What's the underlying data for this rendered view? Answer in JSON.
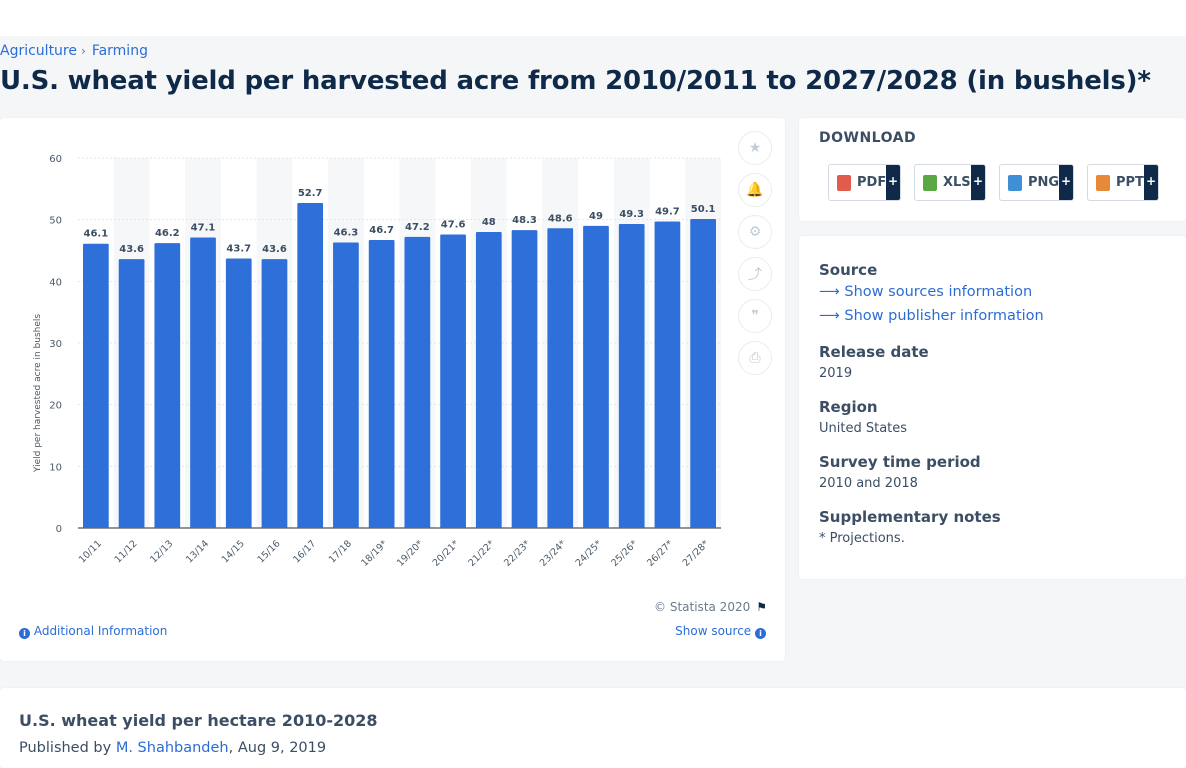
{
  "breadcrumb": {
    "items": [
      "Agriculture",
      "Farming"
    ]
  },
  "page": {
    "title": "U.S. wheat yield per harvested acre from 2010/2011 to 2027/2028 (in bushels)*"
  },
  "chart_data": {
    "type": "bar",
    "title": "",
    "xlabel": "",
    "ylabel": "Yield per harvested acre in bushels",
    "ylim": [
      0,
      60
    ],
    "yticks": [
      0,
      10,
      20,
      30,
      40,
      50,
      60
    ],
    "grid": true,
    "categories": [
      "10/11",
      "11/12",
      "12/13",
      "13/14",
      "14/15",
      "15/16",
      "16/17",
      "17/18",
      "18/19*",
      "19/20*",
      "20/21*",
      "21/22*",
      "22/23*",
      "23/24*",
      "24/25*",
      "25/26*",
      "26/27*",
      "27/28*"
    ],
    "values": [
      46.1,
      43.6,
      46.2,
      47.1,
      43.7,
      43.6,
      52.7,
      46.3,
      46.7,
      47.2,
      47.6,
      48,
      48.3,
      48.6,
      49,
      49.3,
      49.7,
      50.1
    ],
    "bar_color": "#2f6fd9"
  },
  "chart_footer": {
    "copyright": "© Statista 2020",
    "additional_info": "Additional Information",
    "show_source": "Show source"
  },
  "download": {
    "title": "DOWNLOAD",
    "buttons": [
      {
        "label": "PDF",
        "icon": "pdf-file-icon"
      },
      {
        "label": "XLS",
        "icon": "xls-file-icon"
      },
      {
        "label": "PNG",
        "icon": "png-file-icon"
      },
      {
        "label": "PPT",
        "icon": "ppt-file-icon"
      }
    ],
    "plus": "+"
  },
  "info": {
    "source_label": "Source",
    "show_sources": "Show sources information",
    "show_publisher": "Show publisher information",
    "release_date_label": "Release date",
    "release_date": "2019",
    "region_label": "Region",
    "region": "United States",
    "survey_label": "Survey time period",
    "survey": "2010 and 2018",
    "notes_label": "Supplementary notes",
    "notes": "* Projections."
  },
  "related": {
    "title": "U.S. wheat yield per hectare 2010-2028",
    "published_by": "Published by",
    "author": "M. Shahbandeh",
    "date": ", Aug 9, 2019"
  }
}
